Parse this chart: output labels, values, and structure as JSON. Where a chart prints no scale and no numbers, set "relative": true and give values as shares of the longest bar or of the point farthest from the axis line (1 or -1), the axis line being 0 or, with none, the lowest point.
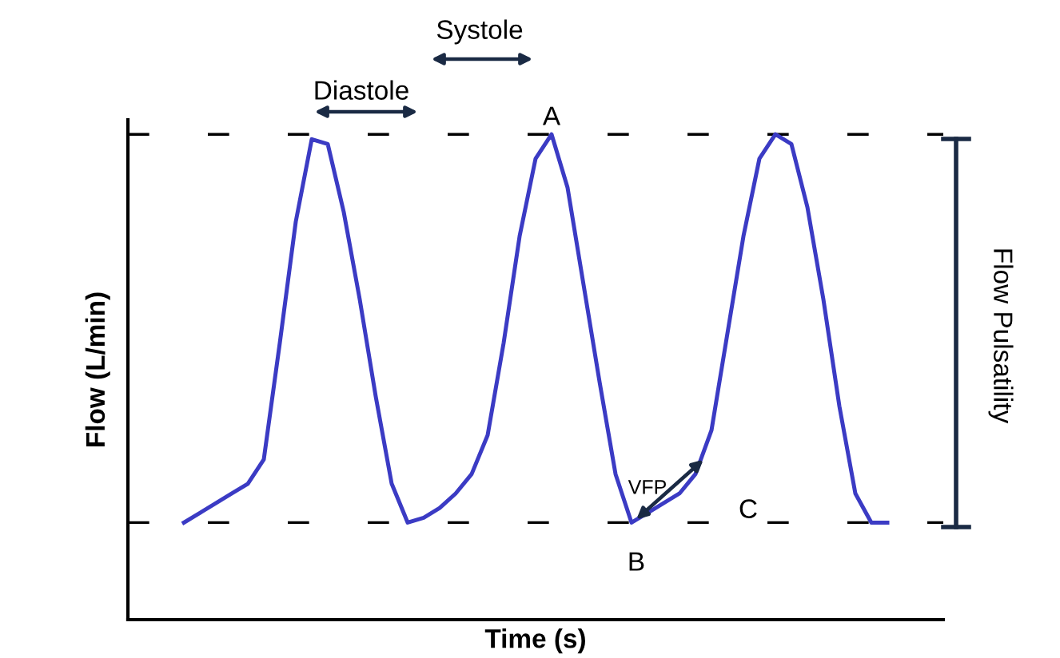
{
  "chart_data": {
    "type": "line",
    "relative": true,
    "xlabel": "Time (s)",
    "ylabel": "Flow (L/min)",
    "categories": [
      null,
      null,
      null,
      null,
      null,
      null,
      null,
      null,
      null,
      null,
      null,
      null,
      null,
      null,
      null,
      null,
      null,
      null,
      null,
      null,
      null,
      null,
      null,
      null,
      null,
      null,
      null,
      null,
      null,
      null,
      null,
      null,
      null,
      null,
      null,
      null,
      null,
      null,
      null,
      null,
      null,
      null,
      null,
      null,
      null
    ],
    "series": [
      {
        "color": "#3b3bc4",
        "values": [
          0.2,
          0.22,
          0.24,
          0.26,
          0.28,
          0.33,
          0.57,
          0.82,
          0.99,
          0.98,
          0.84,
          0.66,
          0.46,
          0.28,
          0.2,
          0.21,
          0.23,
          0.26,
          0.3,
          0.38,
          0.57,
          0.79,
          0.95,
          1.0,
          0.89,
          0.69,
          0.49,
          0.3,
          0.2,
          0.22,
          0.24,
          0.26,
          0.3,
          0.39,
          0.59,
          0.79,
          0.95,
          1.0,
          0.98,
          0.85,
          0.66,
          0.44,
          0.26,
          0.2,
          0.2
        ]
      }
    ],
    "ref_lines": [
      {
        "axis": "y",
        "value": 1.0,
        "color": "#000000",
        "line_style": "dashed"
      },
      {
        "axis": "y",
        "value": 0.2,
        "color": "#000000",
        "line_style": "dashed"
      }
    ],
    "annotations": [
      "Systole",
      "Diastole",
      "A",
      "B",
      "C",
      "VFP",
      "Flow Pulsatility"
    ],
    "legend": false,
    "marker": "none",
    "line_style": "solid"
  }
}
